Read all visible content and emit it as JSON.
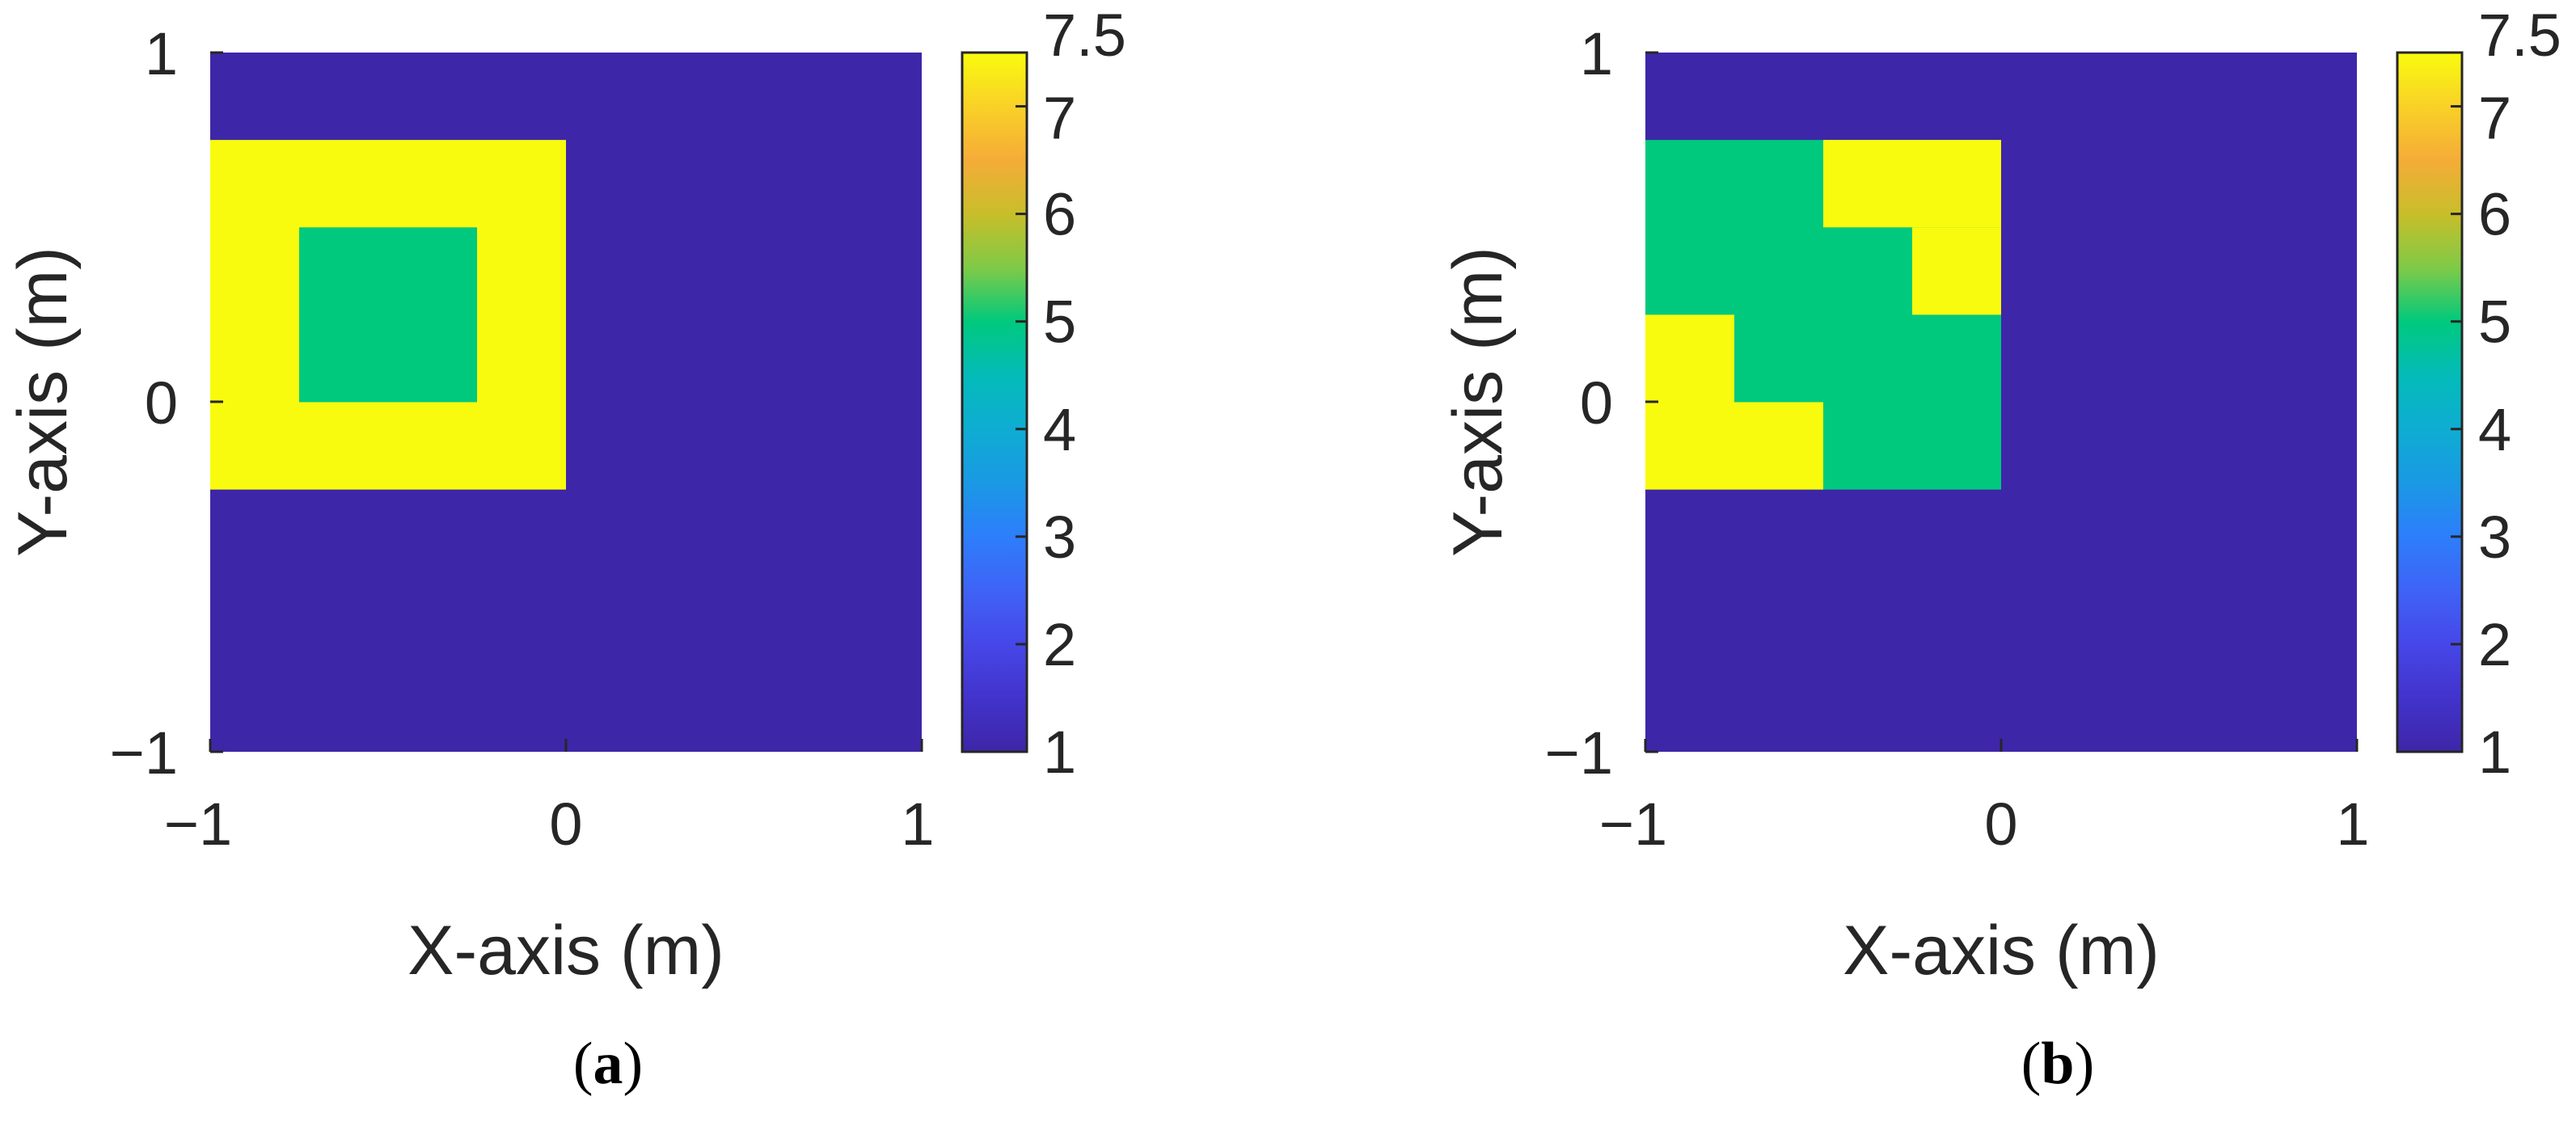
{
  "chart_data": [
    {
      "type": "heatmap",
      "panel_label": "a",
      "xlabel": "X-axis (m)",
      "ylabel": "Y-axis (m)",
      "xlim": [
        -1,
        1
      ],
      "ylim": [
        -1,
        1
      ],
      "x_ticks": [
        "−1",
        "0",
        "1"
      ],
      "y_ticks": [
        "−1",
        "0",
        "1"
      ],
      "background_value": 1,
      "cells": [
        {
          "x": [
            -1,
            0
          ],
          "y": [
            -0.25,
            0.75
          ],
          "value": 7.5
        },
        {
          "x": [
            -0.75,
            -0.25
          ],
          "y": [
            0,
            0.5
          ],
          "value": 5
        }
      ],
      "colorbar": {
        "range": [
          1,
          7.5
        ],
        "ticks": [
          "1",
          "2",
          "3",
          "4",
          "5",
          "6",
          "7",
          "7.5"
        ],
        "colormap": "parula"
      }
    },
    {
      "type": "heatmap",
      "panel_label": "b",
      "xlabel": "X-axis (m)",
      "ylabel": "Y-axis (m)",
      "xlim": [
        -1,
        1
      ],
      "ylim": [
        -1,
        1
      ],
      "x_ticks": [
        "−1",
        "0",
        "1"
      ],
      "y_ticks": [
        "−1",
        "0",
        "1"
      ],
      "background_value": 1,
      "cells": [
        {
          "x": [
            -1,
            0
          ],
          "y": [
            -0.25,
            0.75
          ],
          "value": 5
        },
        {
          "x": [
            -0.5,
            0
          ],
          "y": [
            0.5,
            0.75
          ],
          "value": 7.5
        },
        {
          "x": [
            -0.25,
            0
          ],
          "y": [
            0.25,
            0.5
          ],
          "value": 7.5
        },
        {
          "x": [
            -1,
            -0.75
          ],
          "y": [
            0,
            0.25
          ],
          "value": 7.5
        },
        {
          "x": [
            -1,
            -0.5
          ],
          "y": [
            -0.25,
            0
          ],
          "value": 7.5
        }
      ],
      "colorbar": {
        "range": [
          1,
          7.5
        ],
        "ticks": [
          "1",
          "2",
          "3",
          "4",
          "5",
          "6",
          "7",
          "7.5"
        ],
        "colormap": "parula"
      }
    }
  ],
  "colors": {
    "value_1": "#3e26a8",
    "value_5": "#00c97d",
    "value_7_5": "#f9fb0e",
    "axis": "#262626"
  }
}
